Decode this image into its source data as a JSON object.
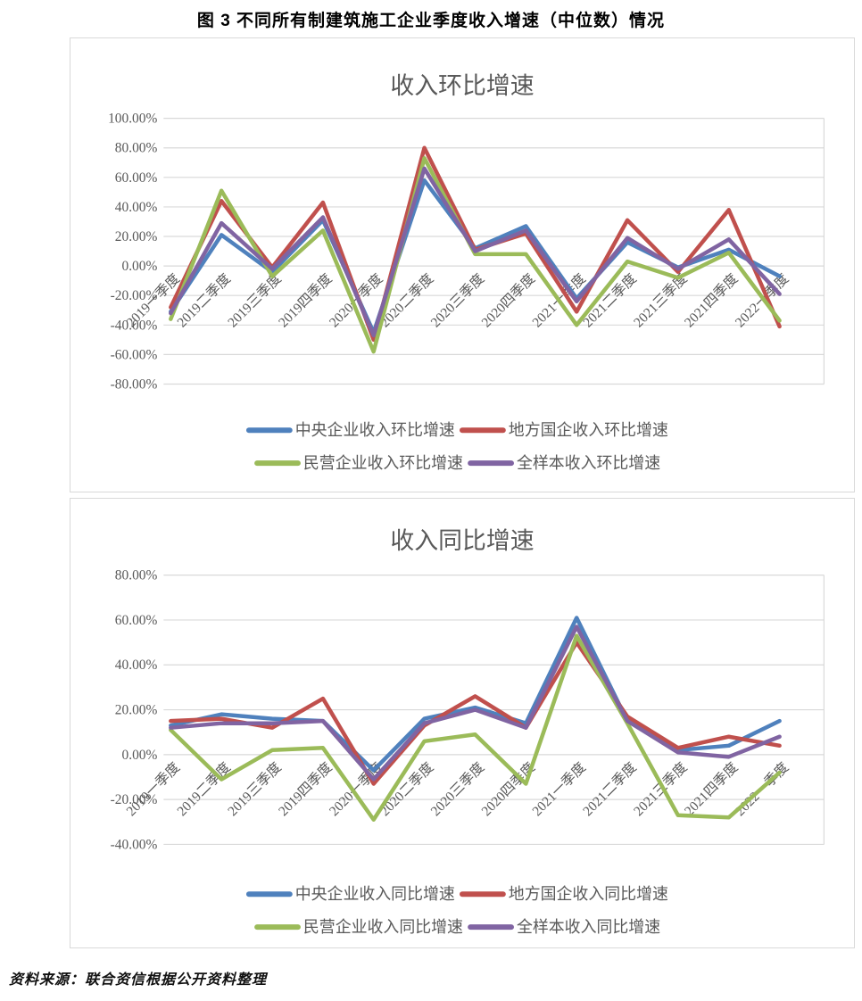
{
  "figure_title": "图 3  不同所有制建筑施工企业季度收入增速（中位数）情况",
  "source_note": "资料来源：联合资信根据公开资料整理",
  "colors": {
    "central": "#4F81BD",
    "local_soe": "#C0504D",
    "private": "#9BBB59",
    "full_sample": "#8064A2",
    "grid": "#D9D9D9",
    "axis_text": "#595959",
    "chart_title_text": "#595959"
  },
  "chart_data": [
    {
      "type": "line",
      "title": "收入环比增速",
      "values_unit": "percent",
      "grid": true,
      "legend_position": "bottom",
      "ylim": [
        -80,
        100
      ],
      "y_tick_step": 20,
      "y_ticks": [
        "100.00%",
        "80.00%",
        "60.00%",
        "40.00%",
        "20.00%",
        "0.00%",
        "-20.00%",
        "-40.00%",
        "-60.00%",
        "-80.00%"
      ],
      "categories": [
        "2019一季度",
        "2019二季度",
        "2019三季度",
        "2019四季度",
        "2020一季度",
        "2020二季度",
        "2020三季度",
        "2020四季度",
        "2021一季度",
        "2021二季度",
        "2021三季度",
        "2021四季度",
        "2022一季度"
      ],
      "series": [
        {
          "key": "central",
          "name": "中央企业收入环比增速",
          "color": "#4F81BD",
          "values": [
            -31,
            21,
            -4,
            31,
            -45,
            58,
            12,
            27,
            -22,
            16,
            -1,
            11,
            -7
          ]
        },
        {
          "key": "local-soe",
          "name": "地方国企收入环比增速",
          "color": "#C0504D",
          "values": [
            -28,
            44,
            -1,
            43,
            -50,
            80,
            11,
            22,
            -31,
            31,
            -4,
            38,
            -41
          ]
        },
        {
          "key": "private",
          "name": "民营企业收入环比增速",
          "color": "#9BBB59",
          "values": [
            -36,
            51,
            -7,
            24,
            -58,
            73,
            8,
            8,
            -40,
            3,
            -8,
            9,
            -37
          ]
        },
        {
          "key": "full-sample",
          "name": "全样本收入环比增速",
          "color": "#8064A2",
          "values": [
            -32,
            29,
            -2,
            33,
            -47,
            66,
            10,
            24,
            -24,
            19,
            -2,
            18,
            -19
          ]
        }
      ]
    },
    {
      "type": "line",
      "title": "收入同比增速",
      "values_unit": "percent",
      "grid": true,
      "legend_position": "bottom",
      "ylim": [
        -40,
        80
      ],
      "y_tick_step": 20,
      "y_ticks": [
        "80.00%",
        "60.00%",
        "40.00%",
        "20.00%",
        "0.00%",
        "-20.00%",
        "-40.00%"
      ],
      "categories": [
        "2019一季度",
        "2019二季度",
        "2019三季度",
        "2019四季度",
        "2020一季度",
        "2020二季度",
        "2020三季度",
        "2020四季度",
        "2021一季度",
        "2021二季度",
        "2021三季度",
        "2021四季度",
        "2022一季度"
      ],
      "series": [
        {
          "key": "central",
          "name": "中央企业收入同比增速",
          "color": "#4F81BD",
          "values": [
            13,
            18,
            16,
            15,
            -7,
            16,
            21,
            14,
            61,
            15,
            2,
            4,
            15
          ]
        },
        {
          "key": "local-soe",
          "name": "地方国企收入同比增速",
          "color": "#C0504D",
          "values": [
            15,
            16,
            12,
            25,
            -13,
            13,
            26,
            12,
            50,
            17,
            3,
            8,
            4
          ]
        },
        {
          "key": "private",
          "name": "民营企业收入同比增速",
          "color": "#9BBB59",
          "values": [
            11,
            -11,
            2,
            3,
            -29,
            6,
            9,
            -13,
            53,
            14,
            -27,
            -28,
            -8
          ]
        },
        {
          "key": "full-sample",
          "name": "全样本收入同比增速",
          "color": "#8064A2",
          "values": [
            12,
            14,
            14,
            15,
            -11,
            14,
            20,
            12,
            57,
            15,
            1,
            -1,
            8
          ]
        }
      ]
    }
  ]
}
